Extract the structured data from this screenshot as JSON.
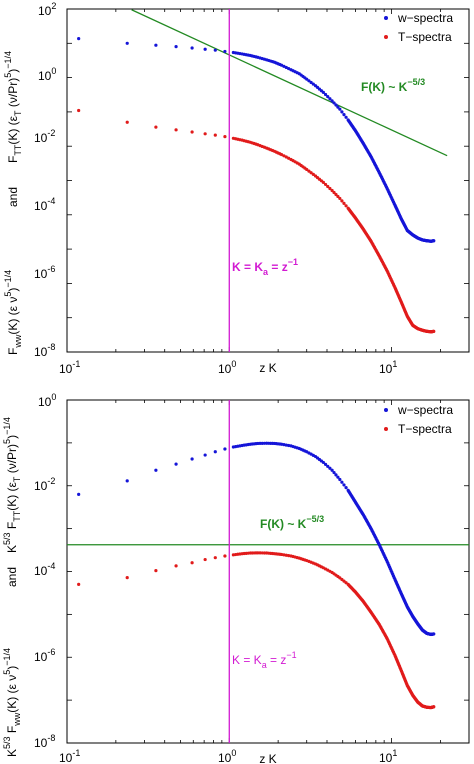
{
  "chart_data": [
    {
      "type": "scatter",
      "xlabel": "z K",
      "ylabel_lines": [
        "F_TT(K) (ε_T (ν/Pr)^5)^−1/4",
        "and",
        "F_ww(K) (ε ν^5)^−1/4"
      ],
      "x_scale": "log",
      "y_scale": "log",
      "xlim": [
        0.1,
        30
      ],
      "ylim": [
        1e-08,
        100
      ],
      "x_ticks": [
        {
          "base": "10",
          "exp": "-1"
        },
        {
          "base": "10",
          "exp": "0"
        },
        {
          "base": "10",
          "exp": "1"
        }
      ],
      "y_ticks": [
        {
          "base": "10",
          "exp": "-8"
        },
        {
          "base": "10",
          "exp": "-6"
        },
        {
          "base": "10",
          "exp": "-4"
        },
        {
          "base": "10",
          "exp": "-2"
        },
        {
          "base": "10",
          "exp": "0"
        },
        {
          "base": "10",
          "exp": "2"
        }
      ],
      "legend_position": "top-right",
      "series": [
        {
          "name": "w−spectra",
          "color": "#1515d8",
          "x": [
            0.118,
            0.235,
            0.353,
            0.47,
            0.59,
            0.71,
            0.82,
            0.94,
            1.06,
            1.2,
            1.35,
            1.5,
            1.7,
            1.9,
            2.1,
            2.4,
            2.7,
            3.0,
            3.4,
            3.8,
            4.3,
            4.8,
            5.4,
            6.0,
            6.7,
            7.5,
            8.4,
            9.4,
            10.5,
            11.5,
            12.5,
            13.5,
            14.5,
            15.5,
            16.5,
            17.5,
            18.2
          ],
          "y": [
            13.7,
            10.0,
            8.8,
            8.0,
            7.3,
            6.7,
            6.3,
            5.8,
            5.4,
            4.9,
            4.4,
            3.9,
            3.3,
            2.8,
            2.3,
            1.7,
            1.3,
            0.9,
            0.58,
            0.37,
            0.21,
            0.12,
            0.058,
            0.028,
            0.012,
            0.0048,
            0.0017,
            0.00058,
            0.00019,
            7.5e-05,
            3.5e-05,
            2.6e-05,
            2.1e-05,
            1.85e-05,
            1.75e-05,
            1.7e-05,
            1.75e-05
          ]
        },
        {
          "name": "T−spectra",
          "color": "#e11b1b",
          "x": [
            0.118,
            0.235,
            0.353,
            0.47,
            0.59,
            0.71,
            0.82,
            0.94,
            1.06,
            1.2,
            1.35,
            1.5,
            1.7,
            1.9,
            2.1,
            2.4,
            2.7,
            3.0,
            3.4,
            3.8,
            4.3,
            4.8,
            5.4,
            6.0,
            6.7,
            7.5,
            8.4,
            9.4,
            10.5,
            11.5,
            12.5,
            13.5,
            14.5,
            15.5,
            16.5,
            17.5,
            18.2
          ],
          "y": [
            0.11,
            0.05,
            0.036,
            0.03,
            0.026,
            0.023,
            0.021,
            0.019,
            0.017,
            0.015,
            0.013,
            0.011,
            0.0088,
            0.0071,
            0.0057,
            0.0041,
            0.003,
            0.0021,
            0.00135,
            0.00088,
            0.00051,
            0.0003,
            0.000155,
            8e-05,
            3.8e-05,
            1.65e-05,
            6.3e-06,
            2.3e-06,
            7.5e-07,
            2.8e-07,
            1.1e-07,
            6e-08,
            4.8e-08,
            4.3e-08,
            4e-08,
            3.9e-08,
            4e-08
          ]
        }
      ],
      "reference_line": {
        "label": "F(K) ~ K^−5/3",
        "color": "#238a23",
        "x": [
          0.25,
          22
        ],
        "y": [
          95.0,
          0.0053
        ]
      },
      "vertical_line": {
        "label": "K = K_a = z^−1",
        "color": "#d21ad2",
        "x": 1.0
      }
    },
    {
      "type": "scatter",
      "xlabel": "z K",
      "ylabel_lines": [
        "K^5/3 F_TT(K) (ε_T (ν/Pr)^5)^−1/4",
        "and",
        "K^5/3 F_ww(K) (ε ν^5)^−1/4"
      ],
      "x_scale": "log",
      "y_scale": "log",
      "xlim": [
        0.1,
        30
      ],
      "ylim": [
        1e-08,
        1
      ],
      "x_ticks": [
        {
          "base": "10",
          "exp": "-1"
        },
        {
          "base": "10",
          "exp": "0"
        },
        {
          "base": "10",
          "exp": "1"
        }
      ],
      "y_ticks": [
        {
          "base": "10",
          "exp": "-8"
        },
        {
          "base": "10",
          "exp": "-6"
        },
        {
          "base": "10",
          "exp": "-4"
        },
        {
          "base": "10",
          "exp": "-2"
        },
        {
          "base": "10",
          "exp": "0"
        }
      ],
      "legend_position": "top-right",
      "series": [
        {
          "name": "w−spectra",
          "color": "#1515d8",
          "x": [
            0.118,
            0.235,
            0.353,
            0.47,
            0.59,
            0.71,
            0.82,
            0.94,
            1.06,
            1.2,
            1.35,
            1.5,
            1.7,
            1.9,
            2.1,
            2.4,
            2.7,
            3.0,
            3.4,
            3.8,
            4.3,
            4.8,
            5.4,
            6.0,
            6.7,
            7.5,
            8.4,
            9.4,
            10.5,
            11.5,
            12.5,
            13.5,
            14.5,
            15.5,
            16.5,
            17.5,
            18.2
          ],
          "y": [
            0.0063,
            0.013,
            0.023,
            0.032,
            0.042,
            0.052,
            0.062,
            0.072,
            0.08,
            0.087,
            0.093,
            0.097,
            0.098,
            0.097,
            0.093,
            0.085,
            0.074,
            0.062,
            0.048,
            0.035,
            0.023,
            0.014,
            0.0078,
            0.0041,
            0.0021,
            0.00098,
            0.00042,
            0.00017,
            6.5e-05,
            3e-05,
            1.5e-05,
            9e-06,
            6e-06,
            4.3e-06,
            3.6e-06,
            3.4e-06,
            3.5e-06
          ]
        },
        {
          "name": "T−spectra",
          "color": "#e11b1b",
          "x": [
            0.118,
            0.235,
            0.353,
            0.47,
            0.59,
            0.71,
            0.82,
            0.94,
            1.06,
            1.2,
            1.35,
            1.5,
            1.7,
            1.9,
            2.1,
            2.4,
            2.7,
            3.0,
            3.4,
            3.8,
            4.3,
            4.8,
            5.4,
            6.0,
            6.7,
            7.5,
            8.4,
            9.4,
            10.5,
            11.5,
            12.5,
            13.5,
            14.5,
            15.5,
            16.5,
            17.5,
            18.2
          ],
          "y": [
            5e-05,
            7.2e-05,
            0.000105,
            0.000135,
            0.00016,
            0.00019,
            0.00021,
            0.00023,
            0.000245,
            0.00026,
            0.00027,
            0.000272,
            0.00027,
            0.00026,
            0.00025,
            0.00023,
            0.000205,
            0.00018,
            0.00015,
            0.000122,
            9.5e-05,
            7.1e-05,
            5e-05,
            3.3e-05,
            2e-05,
            1.1e-05,
            5.8e-06,
            2.7e-06,
            1.1e-06,
            4.8e-07,
            2.2e-07,
            1.3e-07,
            9e-08,
            7.3e-08,
            6.8e-08,
            6.7e-08,
            7e-08
          ]
        }
      ],
      "reference_line": {
        "label": "F(K) ~ K^−5/3",
        "color": "#238a23",
        "y": 0.00042
      },
      "vertical_line": {
        "label": "K = K_a = z^−1",
        "color": "#d21ad2",
        "x": 1.0
      }
    }
  ]
}
